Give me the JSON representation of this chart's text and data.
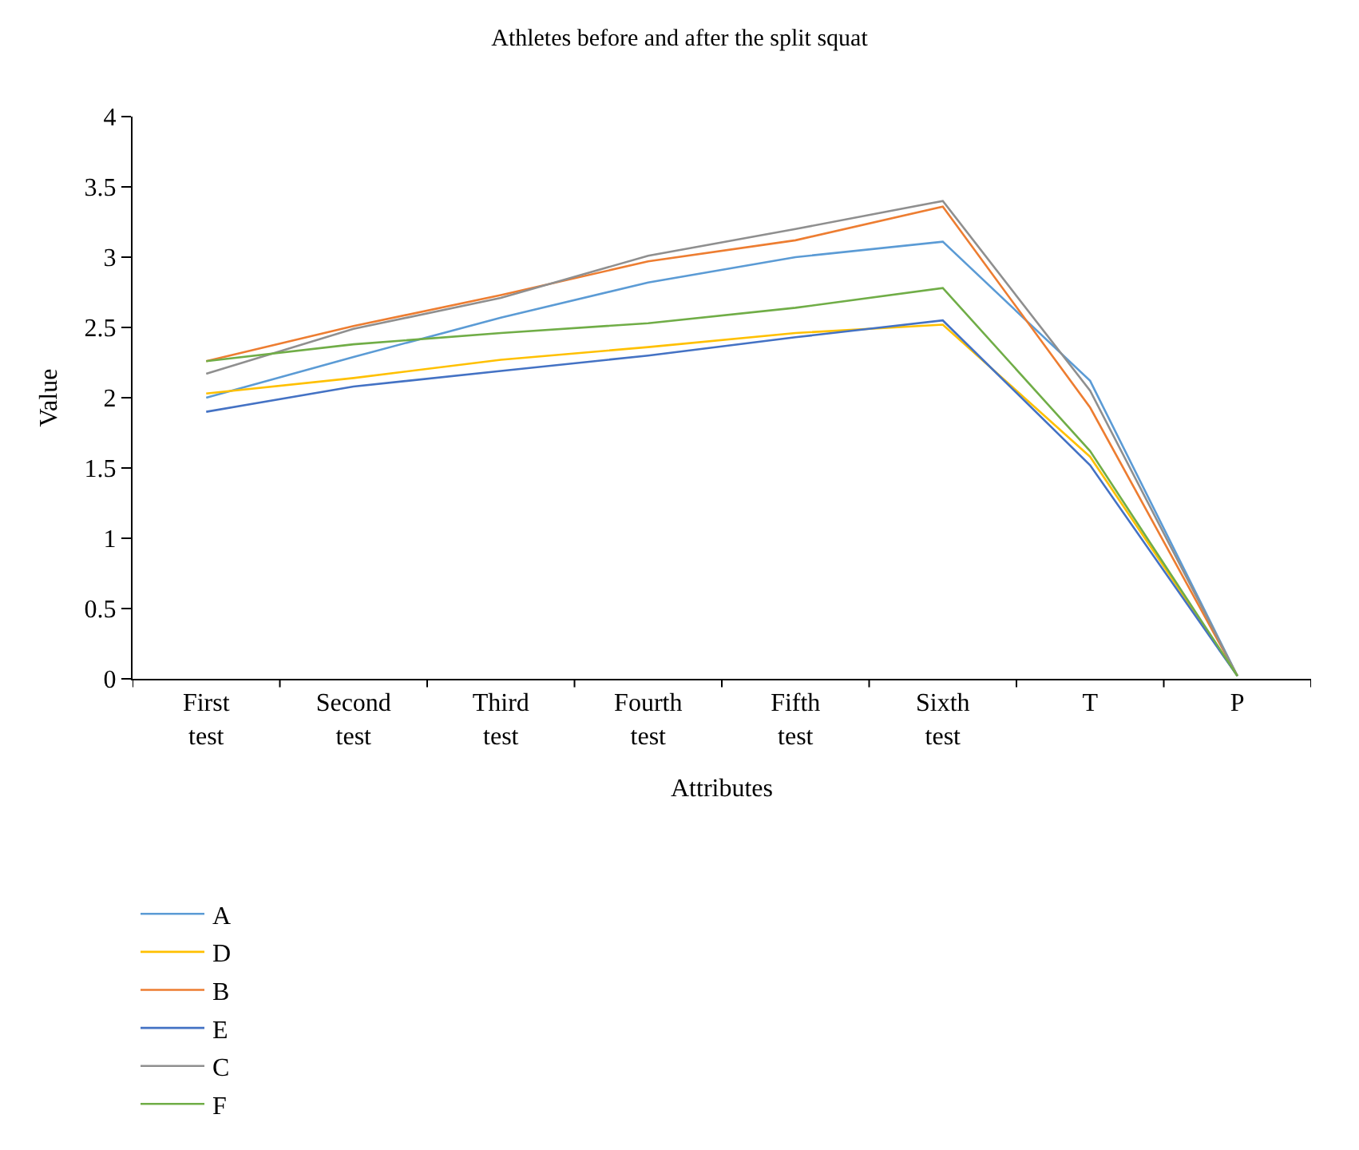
{
  "chart_data": {
    "type": "line",
    "title": "Athletes before and after the split squat",
    "xlabel": "Attributes",
    "ylabel": "Value",
    "categories": [
      "First test",
      "Second test",
      "Third test",
      "Fourth test",
      "Fifth test",
      "Sixth test",
      "T",
      "P"
    ],
    "series": [
      {
        "name": "A",
        "color": "#5b9bd5",
        "values": [
          2.0,
          2.29,
          2.57,
          2.82,
          3.0,
          3.11,
          2.12,
          0.02
        ]
      },
      {
        "name": "B",
        "color": "#ed7d31",
        "values": [
          2.26,
          2.51,
          2.73,
          2.97,
          3.12,
          3.36,
          1.93,
          0.02
        ]
      },
      {
        "name": "C",
        "color": "#8f8f8f",
        "values": [
          2.17,
          2.49,
          2.71,
          3.01,
          3.2,
          3.4,
          2.05,
          0.02
        ]
      },
      {
        "name": "D",
        "color": "#ffc000",
        "values": [
          2.03,
          2.14,
          2.27,
          2.36,
          2.46,
          2.52,
          1.58,
          0.02
        ]
      },
      {
        "name": "E",
        "color": "#4472c4",
        "values": [
          1.9,
          2.08,
          2.19,
          2.3,
          2.43,
          2.55,
          1.52,
          0.02
        ]
      },
      {
        "name": "F",
        "color": "#70ad47",
        "values": [
          2.26,
          2.38,
          2.46,
          2.53,
          2.64,
          2.78,
          1.62,
          0.02
        ]
      }
    ],
    "ylim": [
      0,
      4
    ],
    "yticks": [
      0,
      0.5,
      1,
      1.5,
      2,
      2.5,
      3,
      3.5,
      4
    ],
    "grid": false,
    "legend": "bottom",
    "marker": "none",
    "line_style": "solid"
  }
}
